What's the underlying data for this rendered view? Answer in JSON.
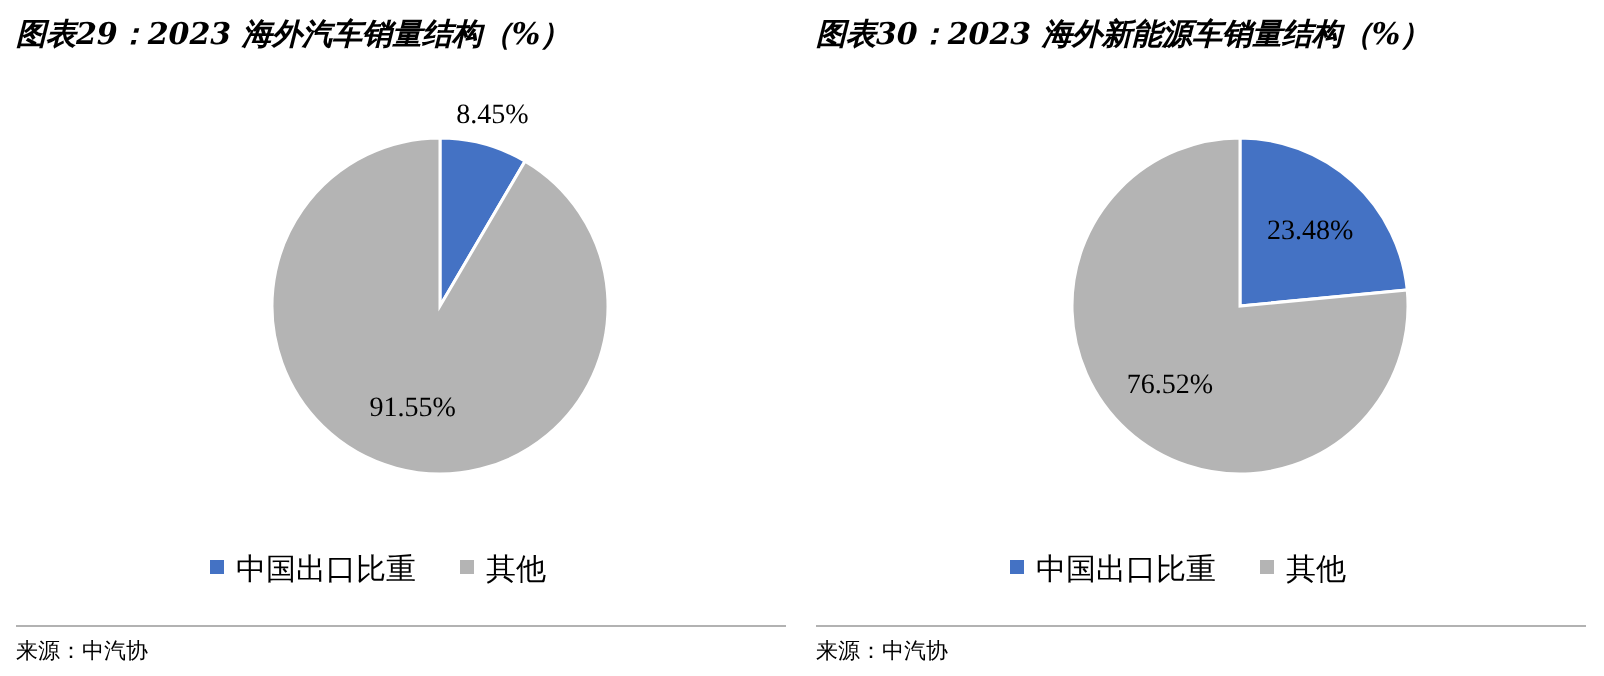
{
  "chart_data": [
    {
      "type": "pie",
      "title": "图表29：2023 海外汽车销量结构（%）",
      "categories": [
        "中国出口比重",
        "其他"
      ],
      "values": [
        8.45,
        91.55
      ],
      "value_labels": [
        "8.45%",
        "91.55%"
      ],
      "colors": [
        "#4472c4",
        "#b4b4b4"
      ],
      "legend": "bottom",
      "annotations": [
        "来源：中汽协"
      ]
    },
    {
      "type": "pie",
      "title": "图表30：2023 海外新能源车销量结构（%）",
      "categories": [
        "中国出口比重",
        "其他"
      ],
      "values": [
        23.48,
        76.52
      ],
      "value_labels": [
        "23.48%",
        "76.52%"
      ],
      "colors": [
        "#4472c4",
        "#b4b4b4"
      ],
      "legend": "bottom",
      "annotations": [
        "来源：中汽协"
      ]
    }
  ]
}
